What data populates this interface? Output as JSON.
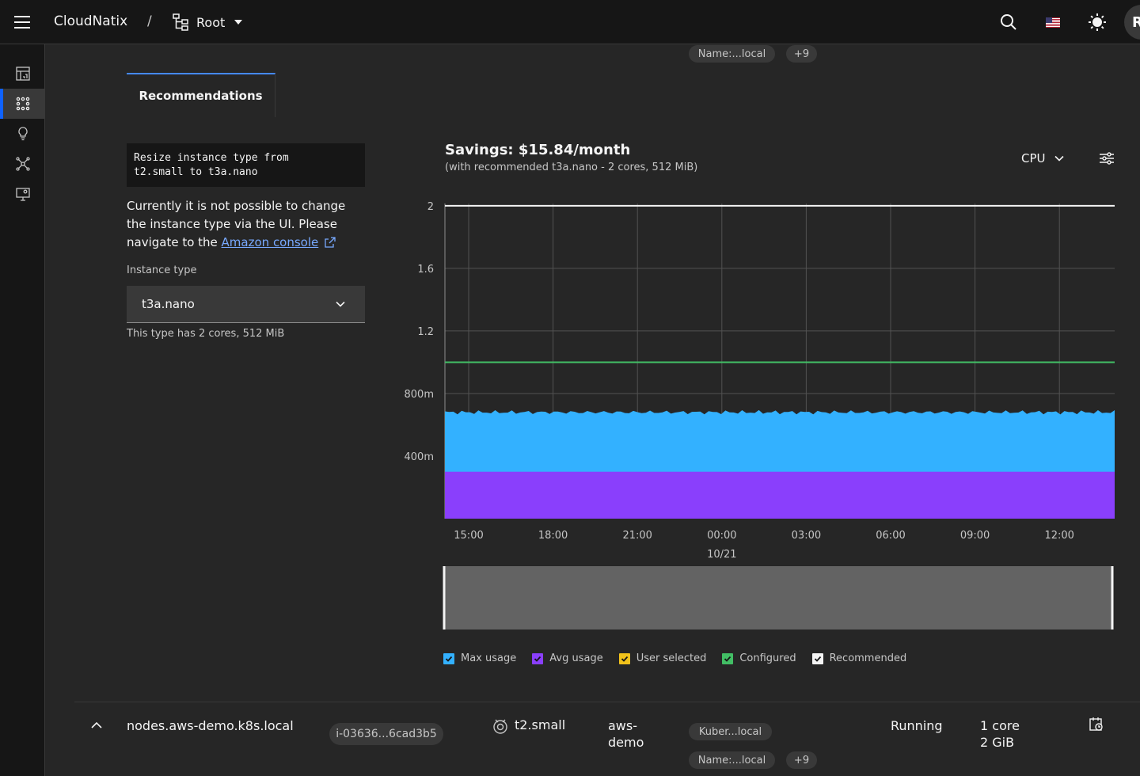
{
  "header": {
    "brand": "CloudNatix",
    "separator": "/",
    "root_label": "Root",
    "avatar_letter": "R"
  },
  "sidebar": {
    "items": [
      {
        "name": "dashboard-icon"
      },
      {
        "name": "workloads-icon",
        "active": true
      },
      {
        "name": "insights-icon"
      },
      {
        "name": "topology-icon"
      },
      {
        "name": "monitor-settings-icon"
      }
    ]
  },
  "top_tags": {
    "name_tag": "Name:...local",
    "more": "+9"
  },
  "tabs": {
    "recommendations": "Recommendations"
  },
  "recommendation": {
    "code": "Resize instance type from\nt2.small to t3a.nano",
    "description_before": "Currently it is not possible to change the instance type via the UI. Please navigate to the ",
    "console_link": "Amazon console",
    "instance_type_label": "Instance type",
    "instance_type_value": "t3a.nano",
    "helper_text": "This type has 2 cores, 512 MiB"
  },
  "chart_header": {
    "title": "Savings: $15.84/month",
    "subtitle": "(with recommended t3a.nano - 2 cores, 512 MiB)",
    "metric": "CPU"
  },
  "chart_data": {
    "type": "area",
    "x_ticks": [
      "15:00",
      "18:00",
      "21:00",
      "00:00",
      "03:00",
      "06:00",
      "09:00",
      "12:00"
    ],
    "x_date_label": "10/21",
    "y_ticks": [
      "400m",
      "800m",
      "1.2",
      "1.6",
      "2"
    ],
    "ylim": [
      0,
      2.05
    ],
    "series": [
      {
        "name": "Max usage",
        "color": "#33b1ff",
        "value": 0.68
      },
      {
        "name": "Avg usage",
        "color": "#8a3ffc",
        "value": 0.3
      },
      {
        "name": "Configured",
        "color": "#42be65",
        "value": 1.0
      },
      {
        "name": "Recommended",
        "color": "#f4f4f4",
        "value": 2.0
      }
    ]
  },
  "legend": [
    {
      "label": "Max usage",
      "color": "#33b1ff"
    },
    {
      "label": "Avg usage",
      "color": "#8a3ffc"
    },
    {
      "label": "User selected",
      "color": "#f1c21b"
    },
    {
      "label": "Configured",
      "color": "#42be65"
    },
    {
      "label": "Recommended",
      "color": "#f4f4f4"
    }
  ],
  "node_row": {
    "name": "nodes.aws-demo.k8s.local",
    "instance_id": "i-03636...6cad3b5",
    "instance_type": "t2.small",
    "cluster_line1": "aws-",
    "cluster_line2": "demo",
    "tag1": "Kuber...local",
    "tag2": "Name:...local",
    "tag_more": "+9",
    "status": "Running",
    "cores": "1 core",
    "memory": "2 GiB"
  }
}
